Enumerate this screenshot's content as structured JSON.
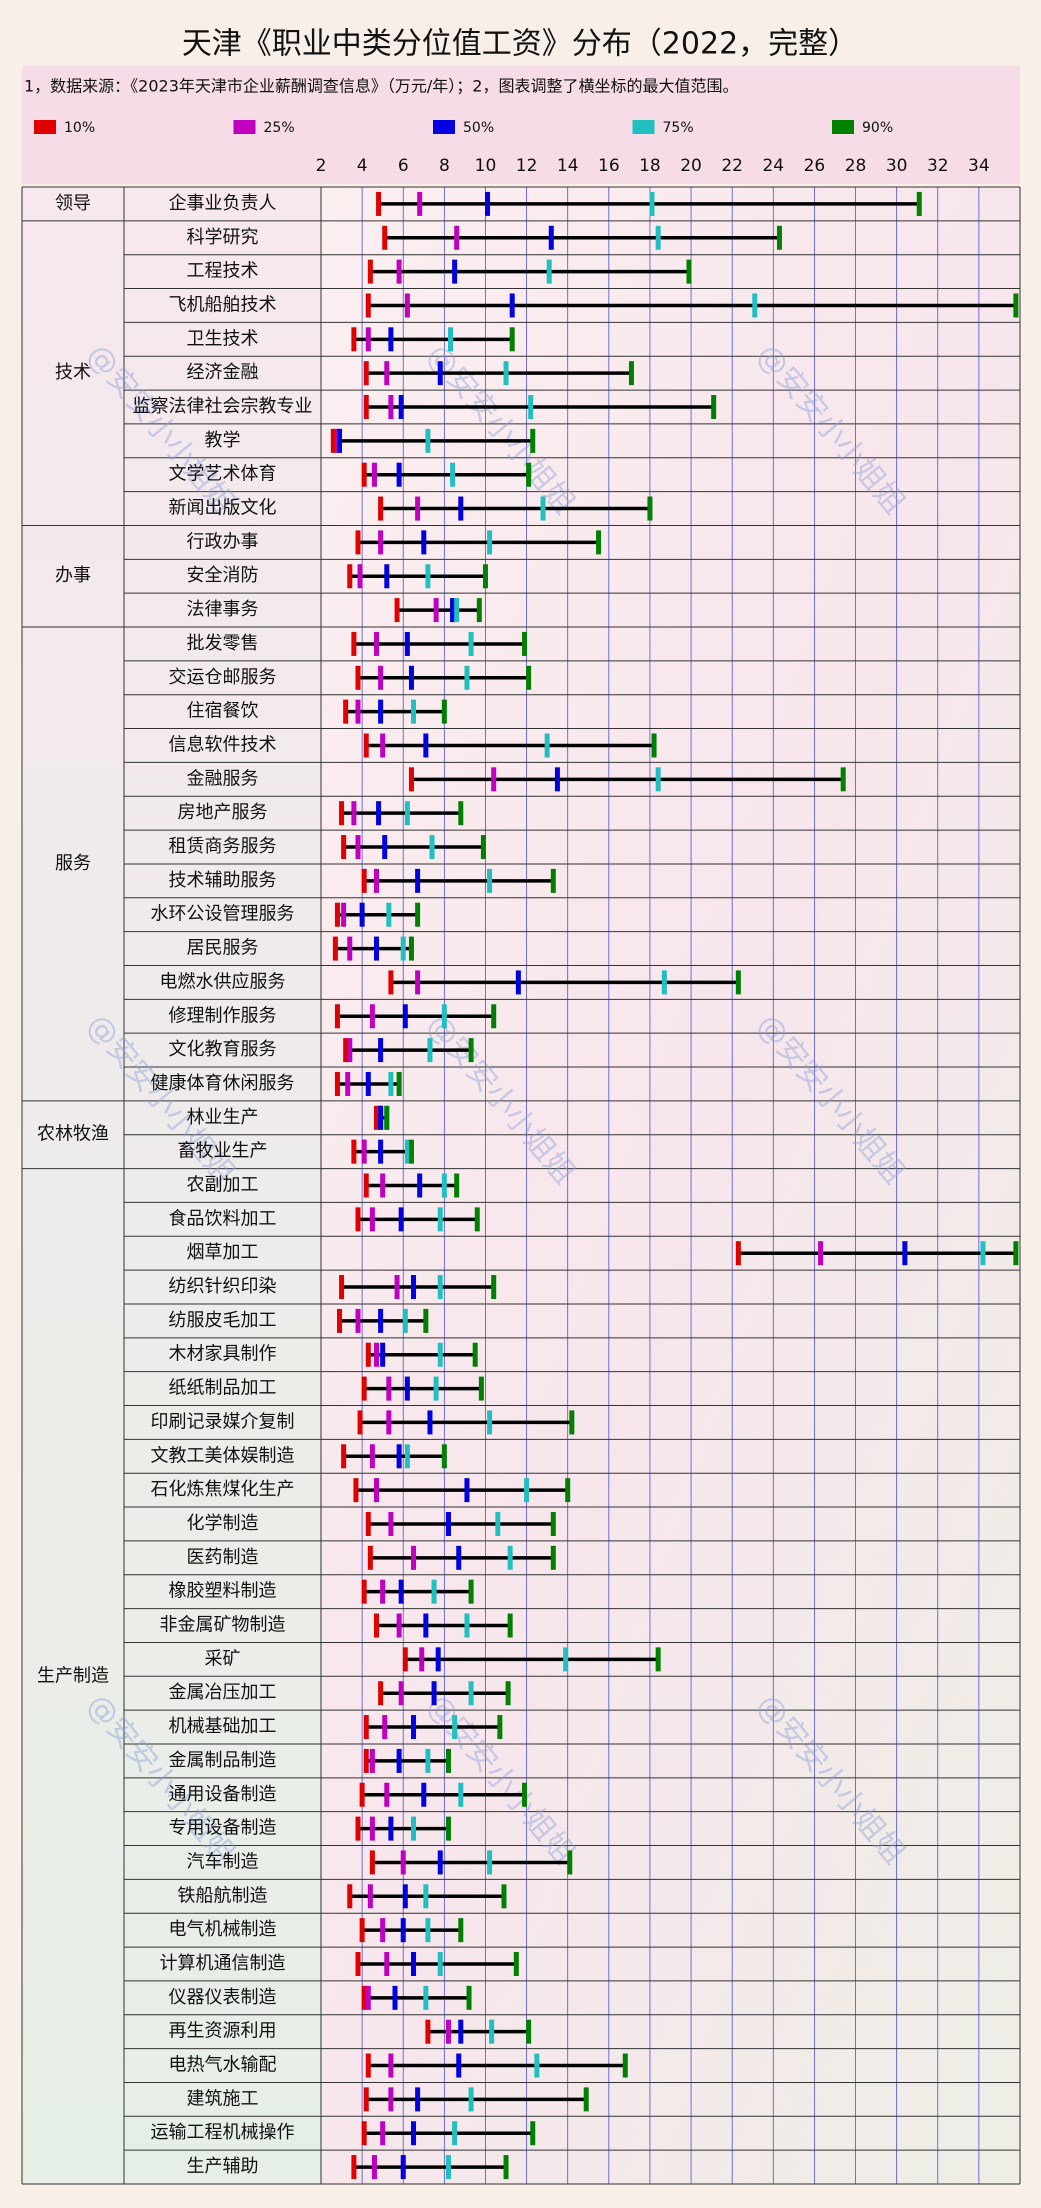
{
  "chart_data": {
    "type": "percentile-range",
    "title": "天津《职业中类分位值工资》分布（2022，完整）",
    "subtitle": "1，数据来源：《2023年天津市企业薪酬调查信息》（万元/年）；2，图表调整了横坐标的最大值范围。",
    "watermark": "@安安小小姐姐",
    "xlim": [
      2,
      36
    ],
    "xticks": [
      2,
      4,
      6,
      8,
      10,
      12,
      14,
      16,
      18,
      20,
      22,
      24,
      26,
      28,
      30,
      32,
      34
    ],
    "grid": true,
    "range_color": "#000000",
    "category_groups": [
      "领导",
      "技术",
      null,
      null,
      null,
      null,
      null,
      null,
      null,
      null,
      "办事",
      null,
      null,
      "服务",
      null,
      null,
      null,
      null,
      null,
      null,
      null,
      null,
      null,
      null,
      null,
      null,
      null,
      "农林牧渔",
      null,
      "生产制造",
      null,
      null,
      null,
      null,
      null,
      null,
      null,
      null,
      null,
      null,
      null,
      null,
      null,
      null,
      null,
      null,
      null,
      null,
      null,
      null,
      null,
      null,
      null,
      null,
      null,
      null,
      null,
      null
    ],
    "categories": [
      "企事业负责人",
      "科学研究",
      "工程技术",
      "飞机船舶技术",
      "卫生技术",
      "经济金融",
      "监察法律社会宗教专业",
      "教学",
      "文学艺术体育",
      "新闻出版文化",
      "行政办事",
      "安全消防",
      "法律事务",
      "批发零售",
      "交运仓邮服务",
      "住宿餐饮",
      "信息软件技术",
      "金融服务",
      "房地产服务",
      "租赁商务服务",
      "技术辅助服务",
      "水环公设管理服务",
      "居民服务",
      "电燃水供应服务",
      "修理制作服务",
      "文化教育服务",
      "健康体育休闲服务",
      "林业生产",
      "畜牧业生产",
      "农副加工",
      "食品饮料加工",
      "烟草加工",
      "纺织针织印染",
      "纺服皮毛加工",
      "木材家具制作",
      "纸纸制品加工",
      "印刷记录媒介复制",
      "文教工美体娱制造",
      "石化炼焦煤化生产",
      "化学制造",
      "医药制造",
      "橡胶塑料制造",
      "非金属矿物制造",
      "采矿",
      "金属冶压加工",
      "机械基础加工",
      "金属制品制造",
      "通用设备制造",
      "专用设备制造",
      "汽车制造",
      "铁船航制造",
      "电气机械制造",
      "计算机通信制造",
      "仪器仪表制造",
      "再生资源利用",
      "电热气水输配",
      "建筑施工",
      "运输工程机械操作",
      "生产辅助"
    ],
    "series": [
      {
        "name": "10%",
        "color": "#e00000",
        "values": [
          4.8,
          5.1,
          4.4,
          4.3,
          3.6,
          4.2,
          4.2,
          2.6,
          4.1,
          4.9,
          3.8,
          3.4,
          5.7,
          3.6,
          3.8,
          3.2,
          4.2,
          6.4,
          3.0,
          3.1,
          4.1,
          2.8,
          2.7,
          5.4,
          2.8,
          3.2,
          2.8,
          4.7,
          3.6,
          4.2,
          3.8,
          22.3,
          3.0,
          2.9,
          4.3,
          4.1,
          3.9,
          3.1,
          3.7,
          4.3,
          4.4,
          4.1,
          4.7,
          6.1,
          4.9,
          4.2,
          4.2,
          4.0,
          3.8,
          4.5,
          3.4,
          4.0,
          3.8,
          4.1,
          7.2,
          4.3,
          4.2,
          4.1,
          3.6
        ]
      },
      {
        "name": "25%",
        "color": "#c000c0",
        "values": [
          6.8,
          8.6,
          5.8,
          6.2,
          4.3,
          5.2,
          5.4,
          2.8,
          4.6,
          6.7,
          4.9,
          3.9,
          7.6,
          4.7,
          4.9,
          3.8,
          5.0,
          10.4,
          3.6,
          3.8,
          4.7,
          3.1,
          3.4,
          6.7,
          4.5,
          3.4,
          3.3,
          4.9,
          4.1,
          5.0,
          4.5,
          26.3,
          5.7,
          3.8,
          4.7,
          5.3,
          5.3,
          4.5,
          4.7,
          5.4,
          6.5,
          5.0,
          5.8,
          6.9,
          5.9,
          5.1,
          4.5,
          5.2,
          4.5,
          6.0,
          4.4,
          5.0,
          5.2,
          4.3,
          8.2,
          5.4,
          5.4,
          5.0,
          4.6
        ]
      },
      {
        "name": "50%",
        "color": "#0000e0",
        "values": [
          10.1,
          13.2,
          8.5,
          11.3,
          5.4,
          7.8,
          5.9,
          2.9,
          5.8,
          8.8,
          7.0,
          5.2,
          8.4,
          6.2,
          6.4,
          4.9,
          7.1,
          13.5,
          4.8,
          5.1,
          6.7,
          4.0,
          4.7,
          11.6,
          6.1,
          4.9,
          4.3,
          4.9,
          4.9,
          6.8,
          5.9,
          30.4,
          6.5,
          4.9,
          5.0,
          6.2,
          7.3,
          5.8,
          9.1,
          8.2,
          8.7,
          5.9,
          7.1,
          7.7,
          7.5,
          6.5,
          5.8,
          7.0,
          5.4,
          7.8,
          6.1,
          6.0,
          6.5,
          5.6,
          8.8,
          8.7,
          6.7,
          6.5,
          6.0
        ]
      },
      {
        "name": "75%",
        "color": "#20c0c0",
        "values": [
          18.1,
          18.4,
          13.1,
          23.1,
          8.3,
          11.0,
          12.2,
          7.2,
          8.4,
          12.8,
          10.2,
          7.2,
          8.6,
          9.3,
          9.1,
          6.5,
          13.0,
          18.4,
          6.2,
          7.4,
          10.2,
          5.3,
          6.0,
          18.7,
          8.0,
          7.3,
          5.4,
          5.2,
          6.2,
          8.0,
          7.8,
          34.2,
          7.8,
          6.1,
          7.8,
          7.6,
          10.2,
          6.2,
          12.0,
          10.6,
          11.2,
          7.5,
          9.1,
          13.9,
          9.3,
          8.5,
          7.2,
          8.8,
          6.5,
          10.2,
          7.1,
          7.2,
          7.8,
          7.1,
          10.3,
          12.5,
          9.3,
          8.5,
          8.2
        ]
      },
      {
        "name": "90%",
        "color": "#008000",
        "values": [
          31.1,
          24.3,
          19.9,
          35.8,
          11.3,
          17.1,
          21.1,
          12.3,
          12.1,
          18.0,
          15.5,
          10.0,
          9.7,
          11.9,
          12.1,
          8.0,
          18.2,
          27.4,
          8.8,
          9.9,
          13.3,
          6.7,
          6.4,
          22.3,
          10.4,
          9.3,
          5.8,
          5.2,
          6.4,
          8.6,
          9.6,
          35.8,
          10.4,
          7.1,
          9.5,
          9.8,
          14.2,
          8.0,
          14.0,
          13.3,
          13.3,
          9.3,
          11.2,
          18.4,
          11.1,
          10.7,
          8.2,
          11.9,
          8.2,
          14.1,
          10.9,
          8.8,
          11.5,
          9.2,
          12.1,
          16.8,
          14.9,
          12.3,
          11.0
        ]
      }
    ]
  }
}
